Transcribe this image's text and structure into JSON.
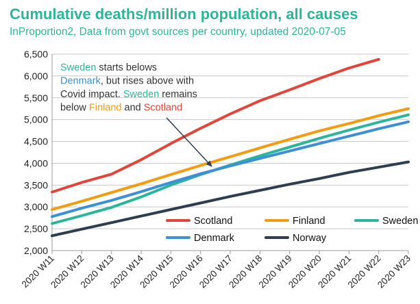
{
  "chart_data": {
    "type": "line",
    "title": "Cumulative deaths/million population, all causes",
    "subtitle": "InProportion2, Data from govt sources per country, updated 2020-07-05",
    "categories": [
      "2020 W11",
      "2020 W12",
      "2020 W13",
      "2020 W14",
      "2020 W15",
      "2020 W16",
      "2020 W17",
      "2020 W18",
      "2020 W19",
      "2020 W20",
      "2020 W21",
      "2020 W22",
      "2020 W23"
    ],
    "ylim": [
      2000,
      6500
    ],
    "yticks": [
      2000,
      2500,
      3000,
      3500,
      4000,
      4500,
      5000,
      5500,
      6000,
      6500
    ],
    "ytick_labels": [
      "2,000",
      "2,500",
      "3,000",
      "3,500",
      "4,000",
      "4,500",
      "5,000",
      "5,500",
      "6,000",
      "6,500"
    ],
    "grid": "horizontal",
    "legend_position": "bottom-right",
    "series": [
      {
        "name": "Scotland",
        "color": "#e0473a",
        "values": [
          3340,
          3560,
          3750,
          4080,
          4450,
          4800,
          5130,
          5430,
          5680,
          5940,
          6180,
          6380,
          null
        ]
      },
      {
        "name": "Finland",
        "color": "#f39c12",
        "values": [
          2940,
          3130,
          3330,
          3530,
          3740,
          3950,
          4150,
          4350,
          4550,
          4740,
          4910,
          5090,
          5250
        ]
      },
      {
        "name": "Sweden",
        "color": "#2bb59a",
        "values": [
          2620,
          2800,
          2990,
          3230,
          3500,
          3740,
          3960,
          4170,
          4370,
          4570,
          4760,
          4940,
          5110
        ]
      },
      {
        "name": "Denmark",
        "color": "#3d8fd6",
        "values": [
          2780,
          2970,
          3150,
          3350,
          3560,
          3760,
          3940,
          4110,
          4280,
          4450,
          4620,
          4790,
          4950
        ]
      },
      {
        "name": "Norway",
        "color": "#2c3e50",
        "values": [
          2340,
          2490,
          2640,
          2790,
          2940,
          3090,
          3240,
          3380,
          3520,
          3650,
          3790,
          3910,
          4030
        ]
      }
    ],
    "annotation": {
      "lines": [
        [
          {
            "t": "Sweden",
            "c": "#2bb59a"
          },
          {
            "t": " starts belows",
            "c": "#333333"
          }
        ],
        [
          {
            "t": "Denmark",
            "c": "#3d8fd6"
          },
          {
            "t": ", but rises above with",
            "c": "#333333"
          }
        ],
        [
          {
            "t": "Covid impact. ",
            "c": "#333333"
          },
          {
            "t": "Sweden",
            "c": "#2bb59a"
          },
          {
            "t": " remains",
            "c": "#333333"
          }
        ],
        [
          {
            "t": "below ",
            "c": "#333333"
          },
          {
            "t": "Finland",
            "c": "#f39c12"
          },
          {
            "t": " and ",
            "c": "#333333"
          },
          {
            "t": "Scotland",
            "c": "#e0473a"
          }
        ]
      ]
    }
  }
}
